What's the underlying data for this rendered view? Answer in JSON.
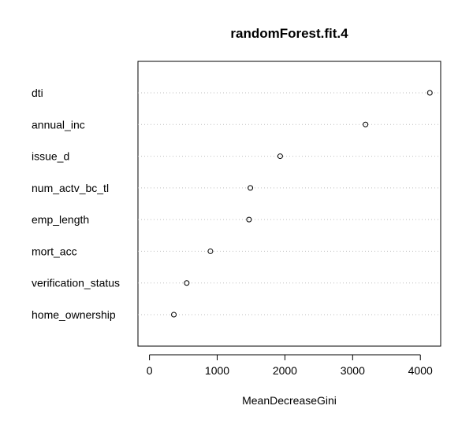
{
  "chart_data": {
    "type": "scatter",
    "title": "randomForest.fit.4",
    "xlabel": "MeanDecreaseGini",
    "ylabel": "",
    "xlim": [
      -170,
      4300
    ],
    "xticks": [
      0,
      1000,
      2000,
      3000,
      4000
    ],
    "grid": "dotted horizontal lines per row",
    "legend": "none",
    "categories": [
      "dti",
      "annual_inc",
      "issue_d",
      "num_actv_bc_tl",
      "emp_length",
      "mort_acc",
      "verification_status",
      "home_ownership"
    ],
    "values": [
      4140,
      3190,
      1930,
      1490,
      1470,
      900,
      550,
      360
    ],
    "point_color": "#000000",
    "grid_color": "#bebebe"
  }
}
